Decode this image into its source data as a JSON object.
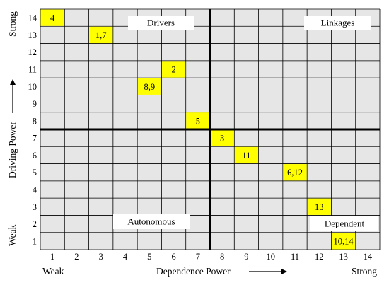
{
  "chart_data": {
    "type": "scatter",
    "title": "",
    "xlabel": "Dependence Power",
    "ylabel": "Driving Power",
    "x_ticks": [
      "1",
      "2",
      "3",
      "4",
      "5",
      "6",
      "7",
      "8",
      "9",
      "10",
      "11",
      "12",
      "13",
      "14"
    ],
    "y_ticks": [
      "1",
      "2",
      "3",
      "4",
      "5",
      "6",
      "7",
      "8",
      "9",
      "10",
      "11",
      "12",
      "13",
      "14"
    ],
    "x_low_label": "Weak",
    "x_high_label": "Strong",
    "y_low_label": "Weak",
    "y_high_label": "Strong",
    "xlim": [
      0.5,
      14.5
    ],
    "ylim": [
      0.5,
      14.5
    ],
    "grid": true,
    "divider": {
      "x": 7.5,
      "y": 7.5
    },
    "quadrants": [
      {
        "name": "Drivers",
        "position": "top-left"
      },
      {
        "name": "Linkages",
        "position": "top-right"
      },
      {
        "name": "Autonomous",
        "position": "bottom-left"
      },
      {
        "name": "Dependent",
        "position": "bottom-right"
      }
    ],
    "points": [
      {
        "label": "4",
        "x": 1,
        "y": 14
      },
      {
        "label": "1,7",
        "x": 3,
        "y": 13
      },
      {
        "label": "2",
        "x": 6,
        "y": 11
      },
      {
        "label": "8,9",
        "x": 5,
        "y": 10
      },
      {
        "label": "5",
        "x": 7,
        "y": 8
      },
      {
        "label": "3",
        "x": 8,
        "y": 7
      },
      {
        "label": "11",
        "x": 9,
        "y": 6
      },
      {
        "label": "6,12",
        "x": 11,
        "y": 5
      },
      {
        "label": "13",
        "x": 12,
        "y": 3
      },
      {
        "label": "10,14",
        "x": 13,
        "y": 1
      }
    ],
    "colors": {
      "grid_bg": "#e6e6e6",
      "grid_line": "#000000",
      "highlight": "#ffff00",
      "quad_box": "#ffffff"
    }
  }
}
